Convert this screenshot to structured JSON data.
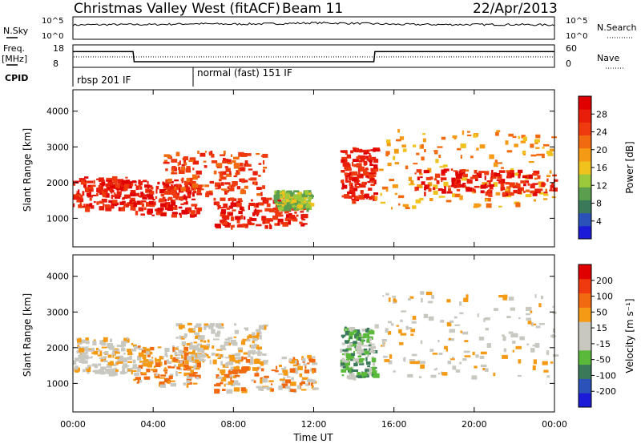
{
  "header": {
    "station": "Christmas Valley West (fitACF)",
    "beam": "Beam 11",
    "date": "22/Apr/2013"
  },
  "strip": {
    "nsky_label": "N.Sky",
    "nsearch_label": "N.Search",
    "noise_ticks_left": [
      "10^5",
      "10^0"
    ],
    "noise_ticks_right": [
      "10^5",
      "10^0"
    ],
    "freq_label": "Freq.",
    "freq_unit": "[MHz]",
    "freq_ticks": [
      "18",
      "8"
    ],
    "nave_label": "Nave",
    "nave_ticks": [
      "60",
      "0"
    ],
    "cpid_label": "CPID",
    "cpid_modes": [
      {
        "text": "rbsp 201 IF",
        "start_hour": 0
      },
      {
        "text": "normal (fast) 151 IF",
        "start_hour": 6
      }
    ]
  },
  "axes": {
    "xlabel": "Time UT",
    "ylabel": "Slant Range [km]",
    "x_ticks": [
      "00:00",
      "04:00",
      "08:00",
      "12:00",
      "16:00",
      "20:00",
      "00:00"
    ]
  },
  "colorbars": {
    "power": {
      "title": "Power [dB]",
      "ticks": [
        "28",
        "24",
        "20",
        "16",
        "12",
        "8",
        "4"
      ]
    },
    "velocity": {
      "title": "Velocity [m s⁻¹]",
      "ticks": [
        "200",
        "100",
        "50",
        "15",
        "-15",
        "-50",
        "-100",
        "-200"
      ]
    }
  },
  "colors": {
    "power_scale": [
      "#1c1cd8",
      "#2a52b8",
      "#3a7a5a",
      "#5a9e4e",
      "#9cc83c",
      "#f0c21e",
      "#f59a14",
      "#f26a10",
      "#ee3a0e",
      "#e81e0a",
      "#e00000"
    ],
    "velocity_scale": [
      "#e00000",
      "#ee3a0e",
      "#f26a10",
      "#f59a14",
      "#c8c8c0",
      "#c8c8c0",
      "#5ab83a",
      "#3a7a5a",
      "#2a52b8",
      "#1c1cd8"
    ],
    "ground_scatter": "#c8c8c0"
  },
  "chart_data": [
    {
      "type": "line",
      "name": "noise",
      "x": [
        0,
        2,
        4,
        6,
        8,
        10,
        12,
        14,
        16,
        18,
        20,
        22,
        24
      ],
      "series": [
        {
          "values": [
            0.6,
            0.62,
            0.62,
            0.66,
            0.64,
            0.66,
            0.7,
            0.68,
            0.63,
            0.62,
            0.62,
            0.62,
            0.6
          ]
        }
      ]
    },
    {
      "type": "line",
      "name": "frequency",
      "x_hours": [
        0,
        3,
        3.05,
        15,
        15.05,
        24
      ],
      "values_mhz": [
        15,
        15,
        10.5,
        10.5,
        15,
        15
      ],
      "ylim": [
        8,
        18
      ]
    },
    {
      "type": "heatmap",
      "name": "power",
      "xlim_hours": [
        0,
        24
      ],
      "ylim_km": [
        200,
        4600
      ],
      "y_ticks": [
        1000,
        2000,
        3000,
        4000
      ],
      "regions": [
        {
          "t0": 0,
          "t1": 3,
          "r0": 1300,
          "r1": 2200,
          "level": 9
        },
        {
          "t0": 3,
          "t1": 6.2,
          "r0": 1100,
          "r1": 2100,
          "level": 9
        },
        {
          "t0": 4.5,
          "t1": 9.5,
          "r0": 1700,
          "r1": 2900,
          "level": 8
        },
        {
          "t0": 7,
          "t1": 11.5,
          "r0": 800,
          "r1": 1600,
          "level": 9
        },
        {
          "t0": 10,
          "t1": 11.8,
          "r0": 1300,
          "r1": 1800,
          "level": 4
        },
        {
          "t0": 13.3,
          "t1": 15,
          "r0": 1500,
          "r1": 3000,
          "level": 9
        },
        {
          "t0": 15,
          "t1": 24,
          "r0": 1300,
          "r1": 3500,
          "level": 6
        },
        {
          "t0": 17,
          "t1": 24,
          "r0": 1700,
          "r1": 2400,
          "level": 9
        }
      ]
    },
    {
      "type": "heatmap",
      "name": "velocity",
      "xlim_hours": [
        0,
        24
      ],
      "ylim_km": [
        200,
        4600
      ],
      "y_ticks": [
        1000,
        2000,
        3000,
        4000
      ],
      "regions": [
        {
          "t0": 0,
          "t1": 3,
          "r0": 1300,
          "r1": 2300,
          "level": 4
        },
        {
          "t0": 3,
          "t1": 6.2,
          "r0": 1000,
          "r1": 2100,
          "level": 3
        },
        {
          "t0": 5,
          "t1": 9.5,
          "r0": 1600,
          "r1": 2700,
          "level": 4
        },
        {
          "t0": 7,
          "t1": 12,
          "r0": 800,
          "r1": 1800,
          "level": 3
        },
        {
          "t0": 13.3,
          "t1": 15,
          "r0": 1200,
          "r1": 2600,
          "level": 6
        },
        {
          "t0": 15,
          "t1": 24,
          "r0": 1200,
          "r1": 3600,
          "level": 4
        }
      ]
    }
  ]
}
